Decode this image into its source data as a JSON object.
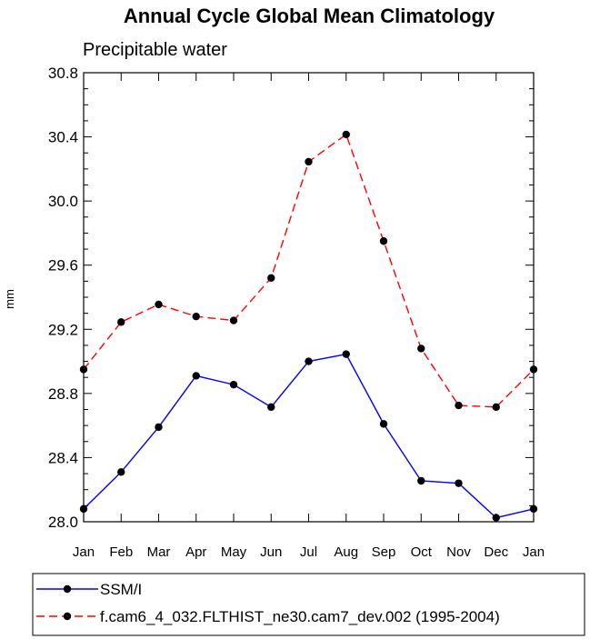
{
  "chart_data": {
    "type": "line",
    "title": "Annual Cycle Global Mean Climatology",
    "subtitle": "Precipitable water",
    "xlabel": "",
    "ylabel": "mm",
    "categories": [
      "Jan",
      "Feb",
      "Mar",
      "Apr",
      "May",
      "Jun",
      "Jul",
      "Aug",
      "Sep",
      "Oct",
      "Nov",
      "Dec",
      "Jan"
    ],
    "ylim": [
      28.0,
      30.8
    ],
    "yticks": [
      "28.0",
      "28.4",
      "28.8",
      "29.2",
      "29.6",
      "30.0",
      "30.4",
      "30.8"
    ],
    "grid": false,
    "legend_position": "bottom",
    "series": [
      {
        "name": "SSM/I",
        "color": "#0000ff",
        "dash": "solid",
        "values": [
          28.08,
          28.31,
          28.59,
          28.91,
          28.855,
          28.715,
          29.0,
          29.045,
          28.61,
          28.255,
          28.24,
          28.025,
          28.08
        ]
      },
      {
        "name": "f.cam6_4_032.FLTHIST_ne30.cam7_dev.002 (1995-2004)",
        "color": "#ff0000",
        "dash": "dashed",
        "values": [
          28.95,
          29.245,
          29.355,
          29.28,
          29.255,
          29.52,
          30.245,
          30.415,
          29.75,
          29.08,
          28.725,
          28.715,
          28.95
        ]
      }
    ]
  }
}
